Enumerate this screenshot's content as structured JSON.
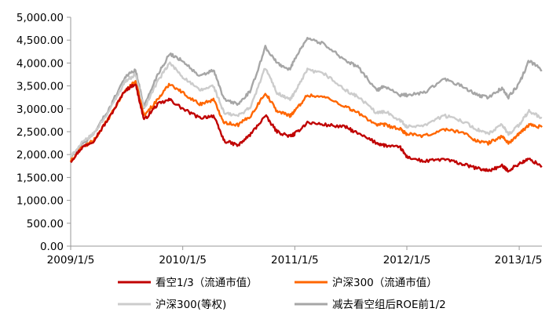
{
  "chart_data": {
    "type": "line",
    "title": "",
    "xlabel": "",
    "ylabel": "",
    "ylim": [
      0,
      5000
    ],
    "y_ticks": [
      {
        "value": 0,
        "label": "0.00"
      },
      {
        "value": 500,
        "label": "500.00"
      },
      {
        "value": 1000,
        "label": "1,000.00"
      },
      {
        "value": 1500,
        "label": "1,500.00"
      },
      {
        "value": 2000,
        "label": "2,000.00"
      },
      {
        "value": 2500,
        "label": "2,500.00"
      },
      {
        "value": 3000,
        "label": "3,000.00"
      },
      {
        "value": 3500,
        "label": "3,500.00"
      },
      {
        "value": 4000,
        "label": "4,000.00"
      },
      {
        "value": 4500,
        "label": "4,500.00"
      },
      {
        "value": 5000,
        "label": "5,000.00"
      }
    ],
    "x_range": [
      "2009/1/5",
      "2013/3/20"
    ],
    "x_ticks": [
      {
        "date": "2009/1/5",
        "label": "2009/1/5"
      },
      {
        "date": "2010/1/5",
        "label": "2010/1/5"
      },
      {
        "date": "2011/1/5",
        "label": "2011/1/5"
      },
      {
        "date": "2012/1/5",
        "label": "2012/1/5"
      },
      {
        "date": "2013/1/5",
        "label": "2013/1/5"
      }
    ],
    "grid": false,
    "legend_position": "bottom",
    "x": [
      "2009/1/5",
      "2009/2/10",
      "2009/3/20",
      "2009/5/10",
      "2009/7/1",
      "2009/8/4",
      "2009/9/1",
      "2009/10/15",
      "2009/11/24",
      "2010/1/5",
      "2010/3/1",
      "2010/4/15",
      "2010/5/20",
      "2010/7/5",
      "2010/8/15",
      "2010/10/1",
      "2010/11/8",
      "2010/12/20",
      "2011/1/5",
      "2011/2/15",
      "2011/4/15",
      "2011/6/20",
      "2011/8/1",
      "2011/9/30",
      "2011/10/25",
      "2011/12/15",
      "2012/1/5",
      "2012/3/1",
      "2012/5/5",
      "2012/6/30",
      "2012/8/20",
      "2012/9/26",
      "2012/11/10",
      "2012/12/1",
      "2013/1/5",
      "2013/2/6",
      "2013/3/20"
    ],
    "series": [
      {
        "name": "看空1/3（流通市值）",
        "color": "#c00000",
        "values": [
          1850,
          2150,
          2300,
          2800,
          3400,
          3550,
          2750,
          3100,
          3200,
          3000,
          2800,
          2850,
          2300,
          2200,
          2450,
          2850,
          2500,
          2400,
          2450,
          2700,
          2650,
          2600,
          2450,
          2250,
          2200,
          2150,
          1950,
          1850,
          1900,
          1800,
          1700,
          1650,
          1750,
          1650,
          1800,
          1900,
          1750
        ]
      },
      {
        "name": "沪深300（流通市值）",
        "color": "#ff6600",
        "values": [
          1850,
          2150,
          2300,
          2800,
          3400,
          3600,
          2850,
          3200,
          3550,
          3350,
          3100,
          3200,
          2700,
          2650,
          2850,
          3350,
          2950,
          2850,
          2950,
          3300,
          3250,
          3050,
          2900,
          2650,
          2650,
          2550,
          2450,
          2400,
          2550,
          2500,
          2300,
          2250,
          2400,
          2250,
          2450,
          2650,
          2600
        ]
      },
      {
        "name": "沪深300(等权)",
        "color": "#cccccc",
        "values": [
          1950,
          2250,
          2450,
          2950,
          3600,
          3750,
          3000,
          3600,
          4000,
          3700,
          3400,
          3500,
          2900,
          2850,
          3050,
          3900,
          3350,
          3200,
          3350,
          3850,
          3750,
          3400,
          3250,
          2900,
          2950,
          2750,
          2600,
          2650,
          2850,
          2750,
          2550,
          2450,
          2650,
          2450,
          2650,
          2950,
          2800
        ]
      },
      {
        "name": "减去看空组后ROE前1/2",
        "color": "#a6a6a6",
        "values": [
          1950,
          2200,
          2450,
          3000,
          3700,
          3850,
          3050,
          3750,
          4200,
          4050,
          3700,
          3850,
          3200,
          3100,
          3400,
          4350,
          4000,
          3850,
          4100,
          4550,
          4400,
          4050,
          3900,
          3400,
          3500,
          3300,
          3300,
          3350,
          3650,
          3500,
          3300,
          3250,
          3450,
          3250,
          3550,
          4050,
          3850
        ]
      }
    ]
  }
}
